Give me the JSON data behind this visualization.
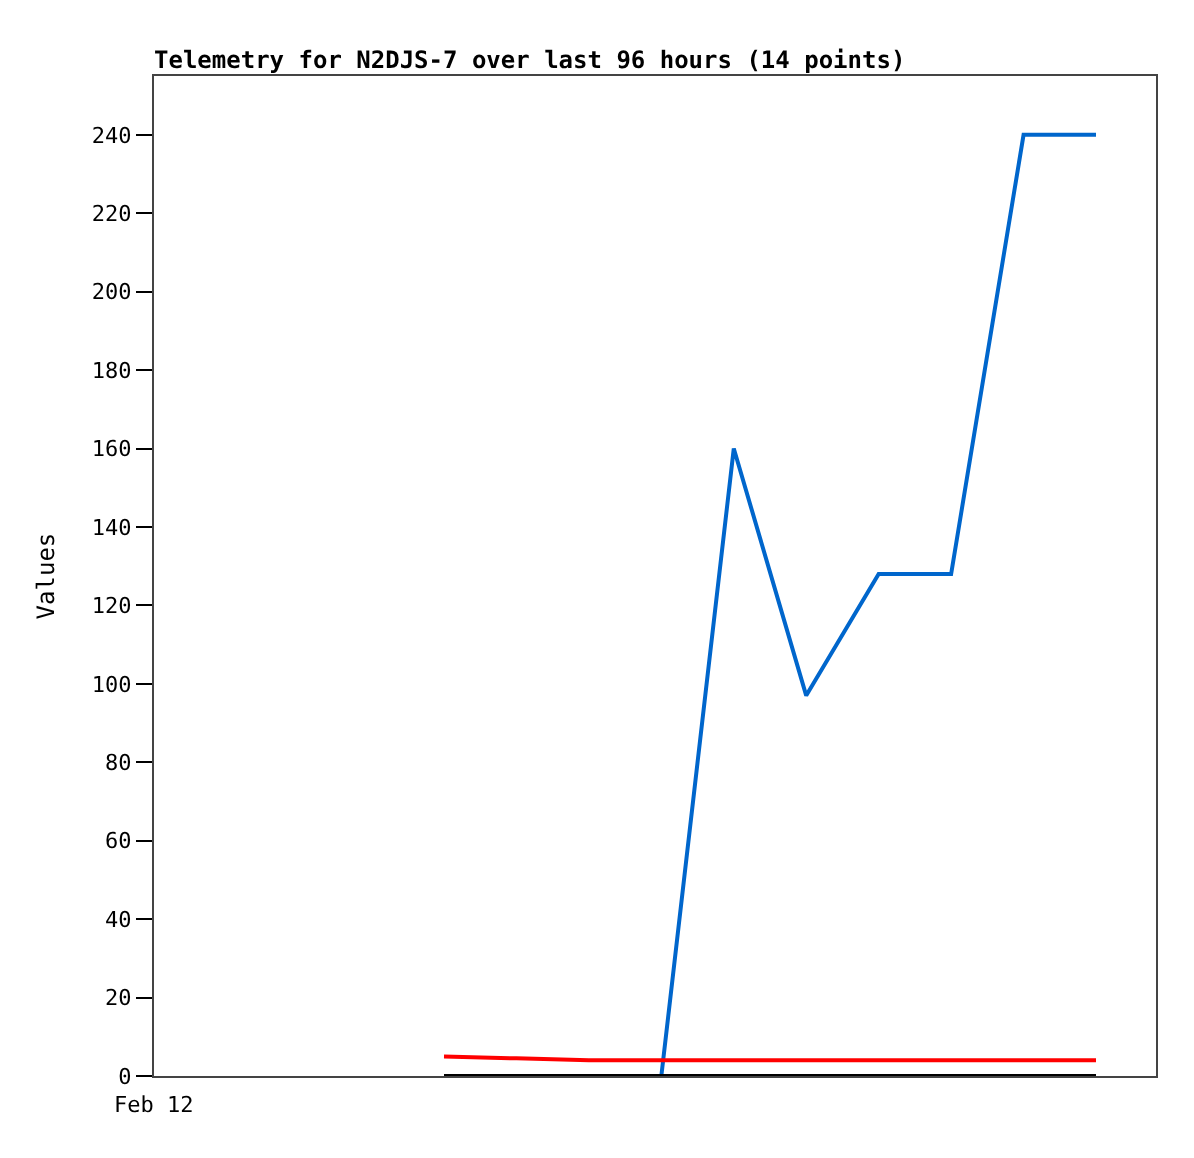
{
  "chart_data": {
    "type": "line",
    "title": "Telemetry for N2DJS-7 over last 96 hours (14 points)",
    "ylabel": "Values",
    "categories": [
      null,
      null,
      null,
      null,
      null,
      null,
      null,
      null,
      null,
      null
    ],
    "series": [
      {
        "color": "#0066cc",
        "values": [
          null,
          null,
          null,
          0,
          160,
          97,
          128,
          128,
          240,
          240
        ]
      },
      {
        "color": "#ff0000",
        "values": [
          5,
          4.5,
          4,
          4,
          4,
          4,
          4,
          4,
          4,
          4
        ]
      },
      {
        "color": "#000000",
        "values": [
          0,
          0,
          0,
          0,
          0,
          0,
          0,
          0,
          0,
          0
        ]
      }
    ],
    "annotations": [
      "Feb 12"
    ],
    "ylim": [
      0,
      255
    ],
    "yticks": [
      0,
      20,
      40,
      60,
      80,
      100,
      120,
      140,
      160,
      180,
      200,
      220,
      240
    ],
    "marker": "none",
    "line_style": "solid"
  }
}
